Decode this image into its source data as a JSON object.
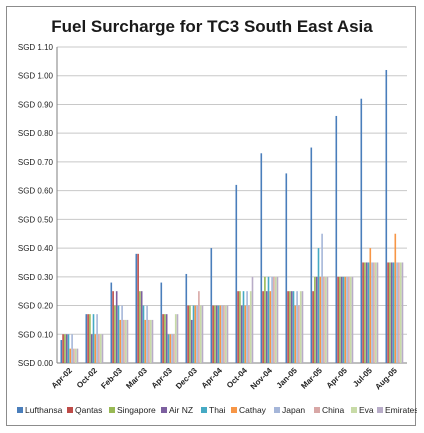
{
  "chart_data": {
    "type": "bar",
    "title": "Fuel Surcharge for TC3 South East Asia",
    "xlabel": "",
    "ylabel": "",
    "ylim": [
      0,
      1.1
    ],
    "y_ticks": [
      "SGD 0.00",
      "SGD 0.10",
      "SGD 0.20",
      "SGD 0.30",
      "SGD 0.40",
      "SGD 0.50",
      "SGD 0.60",
      "SGD 0.70",
      "SGD 0.80",
      "SGD 0.90",
      "SGD 1.00",
      "SGD 1.10"
    ],
    "grid": true,
    "legend_position": "bottom",
    "categories": [
      "Apr-02",
      "Oct-02",
      "Feb-03",
      "Mar-03",
      "Apr-03",
      "Dec-03",
      "Apr-04",
      "Oct-04",
      "Nov-04",
      "Jan-05",
      "Mar-05",
      "Apr-05",
      "Jul-05",
      "Aug-05"
    ],
    "series": [
      {
        "name": "Lufthansa",
        "color": "#4a7ebb",
        "values": [
          0.08,
          0.17,
          0.28,
          0.38,
          0.28,
          0.31,
          0.4,
          0.62,
          0.73,
          0.66,
          0.75,
          0.86,
          0.92,
          1.02
        ]
      },
      {
        "name": "Qantas",
        "color": "#be4b48",
        "values": [
          0.1,
          0.17,
          0.25,
          0.38,
          0.17,
          0.2,
          0.2,
          0.25,
          0.25,
          0.25,
          0.25,
          0.3,
          0.35,
          0.35
        ]
      },
      {
        "name": "Singapore",
        "color": "#98b954",
        "values": [
          0.1,
          0.17,
          0.2,
          0.25,
          0.17,
          0.2,
          0.2,
          0.25,
          0.3,
          0.25,
          0.3,
          0.3,
          0.35,
          0.35
        ]
      },
      {
        "name": "Air NZ",
        "color": "#7d60a0",
        "values": [
          0.1,
          0.1,
          0.25,
          0.25,
          0.17,
          0.15,
          0.2,
          0.2,
          0.25,
          0.25,
          0.3,
          0.3,
          0.35,
          0.35
        ]
      },
      {
        "name": "Thai",
        "color": "#46aac4",
        "values": [
          0.1,
          0.17,
          0.2,
          0.2,
          0.1,
          0.2,
          0.2,
          0.25,
          0.3,
          0.25,
          0.4,
          0.3,
          0.35,
          0.35
        ]
      },
      {
        "name": "Cathay",
        "color": "#f79646",
        "values": [
          0.05,
          0.1,
          0.15,
          0.15,
          0.1,
          0.2,
          0.2,
          0.2,
          0.25,
          0.2,
          0.3,
          0.3,
          0.4,
          0.45
        ]
      },
      {
        "name": "Japan",
        "color": "#a5b6d9",
        "values": [
          0.1,
          0.17,
          0.2,
          0.2,
          0.1,
          0.2,
          0.2,
          0.25,
          0.3,
          0.25,
          0.45,
          0.3,
          0.35,
          0.35
        ]
      },
      {
        "name": "China",
        "color": "#d8a7a6",
        "values": [
          0.05,
          0.1,
          0.15,
          0.15,
          0.1,
          0.25,
          0.2,
          0.2,
          0.3,
          0.2,
          0.3,
          0.3,
          0.35,
          0.35
        ]
      },
      {
        "name": "Eva",
        "color": "#c8dba7",
        "values": [
          0.05,
          0.1,
          0.15,
          0.15,
          0.17,
          0.2,
          0.2,
          0.25,
          0.3,
          0.25,
          0.3,
          0.3,
          0.35,
          0.35
        ]
      },
      {
        "name": "Emirates",
        "color": "#b8acc8",
        "values": [
          0.05,
          0.1,
          0.15,
          0.15,
          0.17,
          0.2,
          0.2,
          0.3,
          0.3,
          0.25,
          0.3,
          0.3,
          0.35,
          0.35
        ]
      }
    ]
  }
}
